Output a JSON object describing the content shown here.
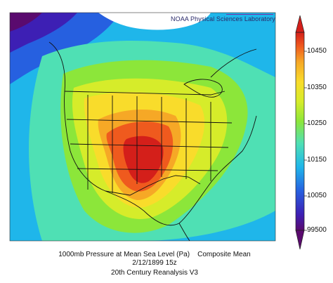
{
  "credit": "NOAA Physical Sciences Laboratory",
  "colorbar": {
    "ticks": [
      "10450",
      "10350",
      "10250",
      "10150",
      "10050",
      "99500"
    ],
    "colors": [
      "#5a0a6e",
      "#3d1fb4",
      "#2660e0",
      "#1fb6ea",
      "#4fe0b4",
      "#8ce63a",
      "#d6ec2a",
      "#f9dc2b",
      "#f6a826",
      "#ef5a1e",
      "#d41f1a"
    ]
  },
  "caption": {
    "line1": "1000mb Pressure at Mean Sea Level (Pa)    Composite Mean",
    "line2": "2/12/1899 15z",
    "line3": "20th Century Reanalysis V3"
  }
}
